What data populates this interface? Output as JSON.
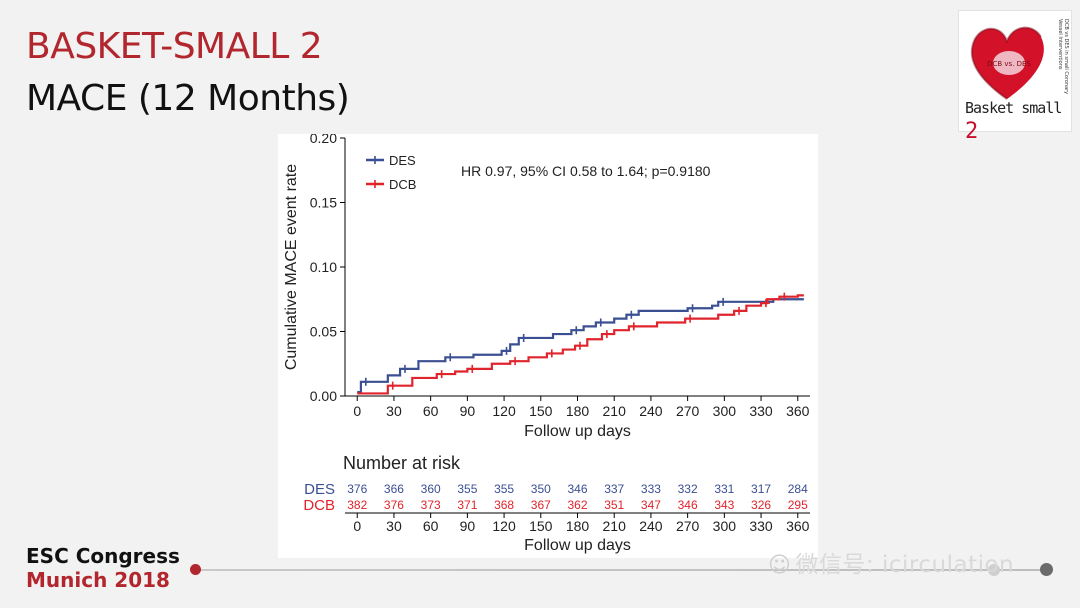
{
  "slide": {
    "title_line1": "BASKET-SMALL 2",
    "title_line2": "MACE (12 Months)",
    "logo": {
      "text_main": "Basket small ",
      "text_num": "2",
      "heart_text": "DCB vs. DES",
      "side_text": "DCB vs DES in small Coronary Vessel Interventions"
    },
    "footer": {
      "line1": "ESC Congress",
      "line2": "Munich 2018"
    },
    "watermark": "微信号: icirculation",
    "colors": {
      "accent_red": "#b2272d",
      "des_blue": "#3b4f93",
      "dcb_red": "#e0242c"
    }
  },
  "chart_data": {
    "type": "line",
    "xlabel": "Follow up days",
    "ylabel": "Cumulative MACE event rate",
    "xlim": [
      -10,
      370
    ],
    "ylim": [
      0,
      0.2
    ],
    "xticks": [
      0,
      30,
      60,
      90,
      120,
      150,
      180,
      210,
      240,
      270,
      300,
      330,
      360
    ],
    "yticks": [
      "0.00",
      "0.05",
      "0.10",
      "0.15",
      "0.20"
    ],
    "annotation": "HR 0.97, 95% CI 0.58 to 1.64; p=0.9180",
    "legend_position": "top-left",
    "series": [
      {
        "name": "DES",
        "color": "#3b4f93",
        "steps": [
          [
            0,
            0.003
          ],
          [
            3,
            0.011
          ],
          [
            25,
            0.016
          ],
          [
            35,
            0.021
          ],
          [
            50,
            0.027
          ],
          [
            72,
            0.03
          ],
          [
            95,
            0.032
          ],
          [
            118,
            0.035
          ],
          [
            125,
            0.04
          ],
          [
            132,
            0.045
          ],
          [
            160,
            0.048
          ],
          [
            175,
            0.051
          ],
          [
            185,
            0.054
          ],
          [
            195,
            0.057
          ],
          [
            210,
            0.06
          ],
          [
            220,
            0.063
          ],
          [
            230,
            0.066
          ],
          [
            270,
            0.068
          ],
          [
            290,
            0.07
          ],
          [
            295,
            0.073
          ],
          [
            340,
            0.075
          ]
        ],
        "end_x": 365
      },
      {
        "name": "DCB",
        "color": "#e0242c",
        "steps": [
          [
            0,
            0.002
          ],
          [
            25,
            0.008
          ],
          [
            45,
            0.014
          ],
          [
            65,
            0.017
          ],
          [
            80,
            0.019
          ],
          [
            90,
            0.021
          ],
          [
            110,
            0.025
          ],
          [
            125,
            0.027
          ],
          [
            140,
            0.03
          ],
          [
            155,
            0.033
          ],
          [
            168,
            0.036
          ],
          [
            178,
            0.039
          ],
          [
            188,
            0.044
          ],
          [
            200,
            0.048
          ],
          [
            210,
            0.051
          ],
          [
            222,
            0.054
          ],
          [
            245,
            0.057
          ],
          [
            268,
            0.06
          ],
          [
            295,
            0.063
          ],
          [
            308,
            0.066
          ],
          [
            318,
            0.07
          ],
          [
            330,
            0.072
          ],
          [
            335,
            0.075
          ],
          [
            345,
            0.077
          ],
          [
            360,
            0.078
          ]
        ],
        "end_x": 365
      }
    ],
    "risk_table": {
      "title": "Number at risk",
      "times": [
        0,
        30,
        60,
        90,
        120,
        150,
        180,
        210,
        240,
        270,
        300,
        330,
        360
      ],
      "rows": [
        {
          "label": "DES",
          "color": "#3b4f93",
          "values": [
            376,
            366,
            360,
            355,
            355,
            350,
            346,
            337,
            333,
            332,
            331,
            317,
            284
          ]
        },
        {
          "label": "DCB",
          "color": "#e0242c",
          "values": [
            382,
            376,
            373,
            371,
            368,
            367,
            362,
            351,
            347,
            346,
            343,
            326,
            295
          ]
        }
      ],
      "xlabel": "Follow up days"
    }
  }
}
